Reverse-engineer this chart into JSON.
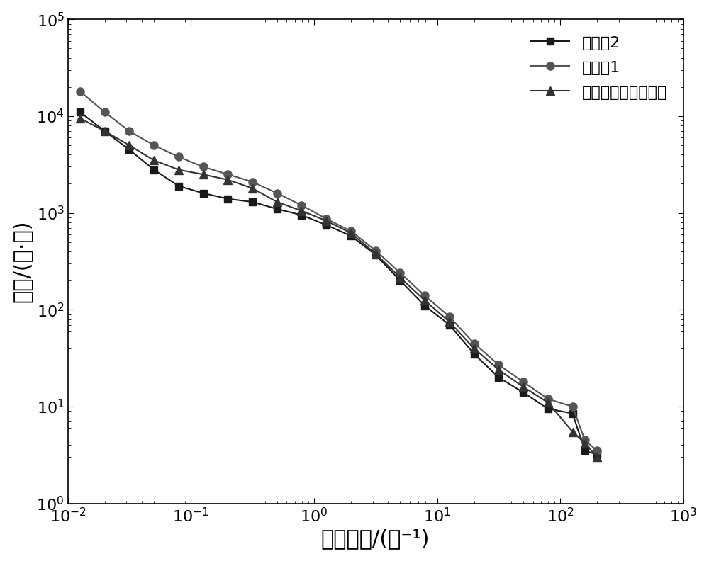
{
  "xlabel": "剪切速率/(秒⁻¹)",
  "ylabel": "粘度/(帕·秒)",
  "xlim": [
    0.01,
    1000
  ],
  "ylim": [
    1,
    100000
  ],
  "series": [
    {
      "label": "实施例2",
      "color": "#1a1a1a",
      "marker": "s",
      "markersize": 7,
      "linewidth": 1.5,
      "x": [
        0.0126,
        0.02,
        0.0316,
        0.0501,
        0.0794,
        0.126,
        0.2,
        0.316,
        0.501,
        0.794,
        1.259,
        1.995,
        3.162,
        5.012,
        7.943,
        12.59,
        19.95,
        31.62,
        50.12,
        79.43,
        125.9,
        158.5,
        199.5
      ],
      "y": [
        11000,
        7000,
        4500,
        2800,
        1900,
        1600,
        1400,
        1300,
        1100,
        950,
        750,
        580,
        370,
        200,
        110,
        70,
        35,
        20,
        14,
        9.5,
        8.5,
        3.5,
        3.2
      ]
    },
    {
      "label": "实施例1",
      "color": "#555555",
      "marker": "o",
      "markersize": 8,
      "linewidth": 1.5,
      "x": [
        0.0126,
        0.02,
        0.0316,
        0.0501,
        0.0794,
        0.126,
        0.2,
        0.316,
        0.501,
        0.794,
        1.259,
        1.995,
        3.162,
        5.012,
        7.943,
        12.59,
        19.95,
        31.62,
        50.12,
        79.43,
        125.9,
        158.5,
        199.5
      ],
      "y": [
        18000,
        11000,
        7000,
        5000,
        3800,
        3000,
        2500,
        2100,
        1600,
        1200,
        870,
        650,
        410,
        240,
        140,
        85,
        45,
        27,
        18,
        12,
        10,
        4.5,
        3.5
      ]
    },
    {
      "label": "国外某型号正极浆料",
      "color": "#333333",
      "marker": "^",
      "markersize": 8,
      "linewidth": 1.5,
      "x": [
        0.0126,
        0.02,
        0.0316,
        0.0501,
        0.0794,
        0.126,
        0.2,
        0.316,
        0.501,
        0.794,
        1.259,
        1.995,
        3.162,
        5.012,
        7.943,
        12.59,
        19.95,
        31.62,
        50.12,
        79.43,
        125.9,
        158.5,
        199.5
      ],
      "y": [
        9500,
        7000,
        5000,
        3500,
        2800,
        2500,
        2200,
        1800,
        1300,
        1050,
        830,
        620,
        380,
        215,
        125,
        75,
        40,
        24,
        16,
        11,
        5.5,
        4.2,
        3.0
      ]
    }
  ],
  "background_color": "#ffffff",
  "tick_color": "#000000",
  "spine_color": "#000000",
  "font_size_labels": 22,
  "font_size_ticks": 16,
  "font_size_legend": 16
}
